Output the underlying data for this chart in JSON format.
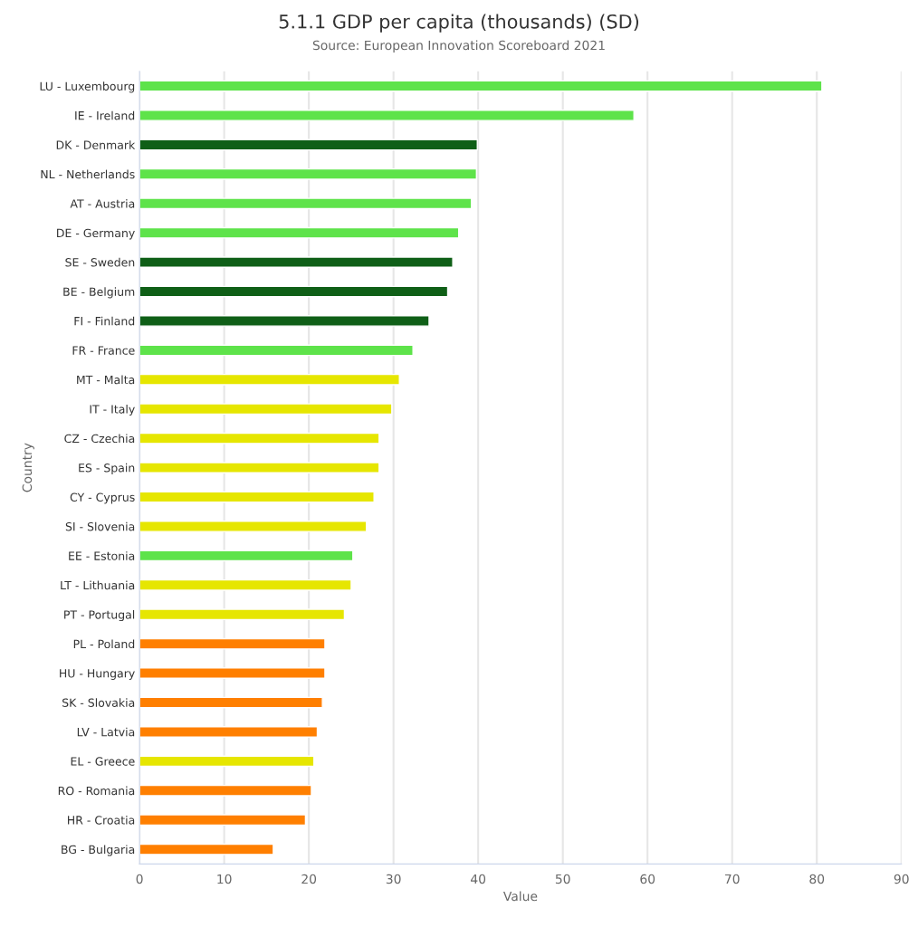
{
  "chart_data": {
    "type": "bar",
    "orientation": "horizontal",
    "title": "5.1.1 GDP per capita (thousands) (SD)",
    "subtitle": "Source: European Innovation Scoreboard 2021",
    "xlabel": "Value",
    "ylabel": "Country",
    "categories": [
      "LU - Luxembourg",
      "IE - Ireland",
      "DK - Denmark",
      "NL - Netherlands",
      "AT - Austria",
      "DE - Germany",
      "SE - Sweden",
      "BE - Belgium",
      "FI - Finland",
      "FR - France",
      "MT - Malta",
      "IT - Italy",
      "CZ - Czechia",
      "ES - Spain",
      "CY - Cyprus",
      "SI - Slovenia",
      "EE - Estonia",
      "LT - Lithuania",
      "PT - Portugal",
      "PL - Poland",
      "HU - Hungary",
      "SK - Slovakia",
      "LV - Latvia",
      "EL - Greece",
      "RO - Romania",
      "HR - Croatia",
      "BG - Bulgaria"
    ],
    "values": [
      80.6,
      58.4,
      39.9,
      39.8,
      39.2,
      37.7,
      37.0,
      36.4,
      34.2,
      32.3,
      30.7,
      29.8,
      28.3,
      28.3,
      27.7,
      26.8,
      25.2,
      25.0,
      24.2,
      21.9,
      21.9,
      21.6,
      21.0,
      20.6,
      20.3,
      19.6,
      15.8
    ],
    "colors": [
      "#5ee34a",
      "#5ee34a",
      "#0f5f17",
      "#5ee34a",
      "#5ee34a",
      "#5ee34a",
      "#0f5f17",
      "#0f5f17",
      "#0f5f17",
      "#5ee34a",
      "#e6e600",
      "#e6e600",
      "#e6e600",
      "#e6e600",
      "#e6e600",
      "#e6e600",
      "#5ee34a",
      "#e6e600",
      "#e6e600",
      "#ff7f00",
      "#ff7f00",
      "#ff7f00",
      "#ff7f00",
      "#e6e600",
      "#ff7f00",
      "#ff7f00",
      "#ff7f00"
    ],
    "xlim": [
      0,
      90
    ],
    "xticks": [
      0,
      10,
      20,
      30,
      40,
      50,
      60,
      70,
      80,
      90
    ],
    "grid": "x"
  }
}
